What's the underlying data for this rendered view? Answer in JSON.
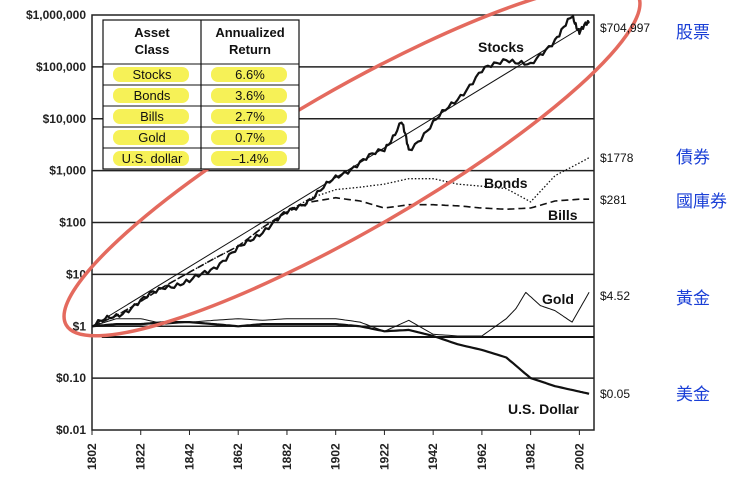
{
  "chart_data": {
    "type": "line",
    "title": "",
    "xlabel": "",
    "ylabel": "",
    "y_scale": "log",
    "ylim": [
      0.01,
      1000000
    ],
    "xlim": [
      1802,
      2008
    ],
    "y_ticks": [
      {
        "value": 0.01,
        "label": "$0.01"
      },
      {
        "value": 0.1,
        "label": "$0.10"
      },
      {
        "value": 1,
        "label": "$1"
      },
      {
        "value": 10,
        "label": "$10"
      },
      {
        "value": 100,
        "label": "$100"
      },
      {
        "value": 1000,
        "label": "$1,000"
      },
      {
        "value": 10000,
        "label": "$10,000"
      },
      {
        "value": 100000,
        "label": "$100,000"
      },
      {
        "value": 1000000,
        "label": "$1,000,000"
      }
    ],
    "x_ticks": [
      {
        "value": 1802,
        "label": "1802"
      },
      {
        "value": 1822,
        "label": "1822"
      },
      {
        "value": 1842,
        "label": "1842"
      },
      {
        "value": 1862,
        "label": "1862"
      },
      {
        "value": 1882,
        "label": "1882"
      },
      {
        "value": 1902,
        "label": "1902"
      },
      {
        "value": 1922,
        "label": "1922"
      },
      {
        "value": 1942,
        "label": "1942"
      },
      {
        "value": 1962,
        "label": "1962"
      },
      {
        "value": 1982,
        "label": "1982"
      },
      {
        "value": 2002,
        "label": "2002"
      }
    ],
    "series": [
      {
        "name": "Stocks",
        "style": "thick",
        "x": [
          1802,
          1812,
          1822,
          1832,
          1842,
          1852,
          1862,
          1872,
          1882,
          1892,
          1902,
          1912,
          1922,
          1929,
          1932,
          1942,
          1952,
          1962,
          1972,
          1982,
          1992,
          1999,
          2002,
          2006
        ],
        "values": [
          1,
          1.6,
          3,
          6,
          7,
          14,
          30,
          70,
          150,
          300,
          700,
          1500,
          2500,
          9000,
          2500,
          8000,
          25000,
          80000,
          150000,
          100000,
          350000,
          900000,
          500000,
          704997
        ],
        "end_label": "$704,997",
        "label_cn": "股票"
      },
      {
        "name": "Bonds",
        "style": "dotted",
        "x": [
          1802,
          1812,
          1822,
          1832,
          1842,
          1852,
          1862,
          1872,
          1882,
          1892,
          1902,
          1912,
          1922,
          1932,
          1942,
          1952,
          1962,
          1972,
          1982,
          1992,
          2002,
          2006
        ],
        "values": [
          1,
          1.6,
          3,
          6,
          11,
          20,
          35,
          80,
          160,
          300,
          430,
          480,
          550,
          700,
          700,
          550,
          500,
          450,
          250,
          800,
          1400,
          1778
        ],
        "end_label": "$1778",
        "label_cn": "債券"
      },
      {
        "name": "Bills",
        "style": "dashed",
        "x": [
          1802,
          1812,
          1822,
          1832,
          1842,
          1852,
          1862,
          1872,
          1882,
          1892,
          1902,
          1912,
          1922,
          1932,
          1942,
          1952,
          1962,
          1972,
          1982,
          1992,
          2002,
          2006
        ],
        "values": [
          1,
          1.6,
          3,
          6,
          11,
          20,
          35,
          80,
          160,
          250,
          300,
          260,
          190,
          220,
          220,
          210,
          190,
          180,
          190,
          260,
          281,
          281
        ],
        "end_label": "$281",
        "label_cn": "國庫券"
      },
      {
        "name": "Gold",
        "style": "thin",
        "x": [
          1802,
          1812,
          1822,
          1832,
          1842,
          1852,
          1862,
          1872,
          1882,
          1892,
          1902,
          1912,
          1922,
          1932,
          1942,
          1952,
          1962,
          1972,
          1976,
          1980,
          1986,
          1992,
          1999,
          2006
        ],
        "values": [
          1,
          1.4,
          1.4,
          1.1,
          1.2,
          1.3,
          1.4,
          1.3,
          1.4,
          1.4,
          1.4,
          1.2,
          0.8,
          1.3,
          0.7,
          0.65,
          0.65,
          1.4,
          2.2,
          4.5,
          2.5,
          2.0,
          1.2,
          4.52
        ],
        "end_label": "$4.52",
        "label_cn": "黃金"
      },
      {
        "name": "U.S. Dollar",
        "style": "thick",
        "x": [
          1802,
          1812,
          1822,
          1832,
          1842,
          1852,
          1862,
          1872,
          1882,
          1892,
          1902,
          1912,
          1922,
          1932,
          1942,
          1952,
          1962,
          1972,
          1982,
          1992,
          2002,
          2006
        ],
        "values": [
          1,
          1.1,
          1.1,
          1.2,
          1.2,
          1.1,
          1.0,
          1.1,
          1.1,
          1.1,
          1.1,
          1.0,
          0.8,
          0.85,
          0.65,
          0.45,
          0.35,
          0.25,
          0.1,
          0.07,
          0.055,
          0.05
        ],
        "end_label": "$0.05",
        "label_cn": "美金"
      }
    ],
    "table": {
      "headers": [
        "Asset Class",
        "Annualized Return"
      ],
      "rows": [
        {
          "asset": "Stocks",
          "return": "6.6%"
        },
        {
          "asset": "Bonds",
          "return": "3.6%"
        },
        {
          "asset": "Bills",
          "return": "2.7%"
        },
        {
          "asset": "Gold",
          "return": "0.7%"
        },
        {
          "asset": "U.S. dollar",
          "return": "–1.4%"
        }
      ]
    },
    "colors": {
      "highlight": "#f4ee3a",
      "ellipse": "#e46a5e",
      "cn_label": "#1a3fd6",
      "lines": "#111111"
    }
  }
}
